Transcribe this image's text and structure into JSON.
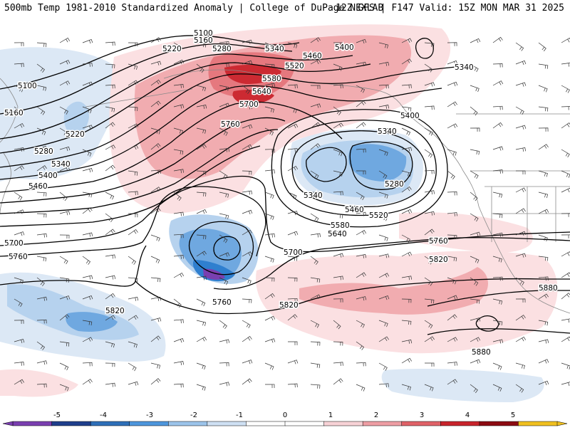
{
  "header": {
    "left_title": "500mb Temp 1981-2010 Standardized Anomaly | College of DuPage NEXLAB",
    "right_title": "12Z GFS | F147 Valid: 15Z MON MAR 31 2025"
  },
  "contour_labels": [
    "5100",
    "5160",
    "5220",
    "5280",
    "5340",
    "5400",
    "5460",
    "5520",
    "5580",
    "5640",
    "5700",
    "5760",
    "5820",
    "5880"
  ],
  "colorbar": {
    "ticks": [
      "-5",
      "-4",
      "-3",
      "-2",
      "-1",
      "0",
      "1",
      "2",
      "3",
      "4",
      "5"
    ],
    "colors": [
      "#7a3fb0",
      "#1f3f8c",
      "#2e6fb8",
      "#4d96dc",
      "#9cc4ea",
      "#cfe0f3",
      "#ffffff",
      "#ffffff",
      "#f7d2d6",
      "#ee9ea4",
      "#e06268",
      "#c8242c",
      "#8c0c12",
      "#f0c020"
    ]
  },
  "colors": {
    "cold_weak": "#dce8f5",
    "cold_mid": "#b6d2ee",
    "cold_strong": "#6fa8e0",
    "cold_deep": "#2f7fcf",
    "cold_extreme": "#7a3fb0",
    "warm_weak": "#fbe0e2",
    "warm_mid": "#f1acb0",
    "warm_strong": "#e5787e",
    "warm_deep": "#cc2a32",
    "contour": "#000000",
    "coast": "#8a8a8a"
  }
}
